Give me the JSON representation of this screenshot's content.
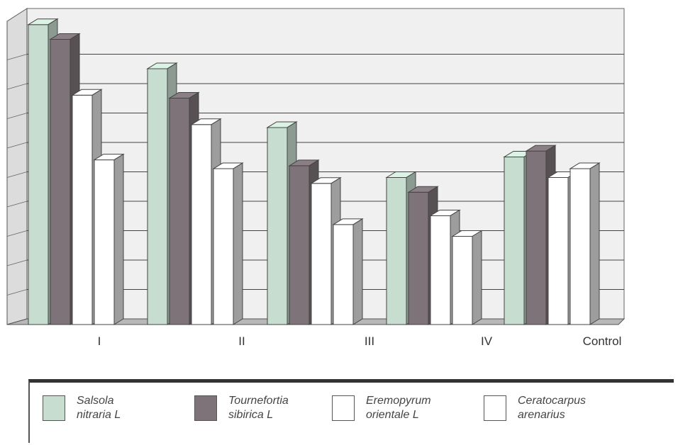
{
  "chart_data": {
    "type": "bar",
    "categories": [
      "I",
      "II",
      "III",
      "IV",
      "Control"
    ],
    "series": [
      {
        "name": "Salsola nitraria L",
        "values": [
          102,
          87,
          67,
          50,
          57
        ],
        "color": "#c7ddd0"
      },
      {
        "name": "Tournefortia sibirica L",
        "values": [
          97,
          77,
          54,
          45,
          59
        ],
        "color": "#7d7378"
      },
      {
        "name": "Eremopyrum orientale L",
        "values": [
          78,
          68,
          48,
          37,
          50
        ],
        "color": "#ffffff"
      },
      {
        "name": "Ceratocarpus arenarius",
        "values": [
          56,
          53,
          34,
          30,
          53
        ],
        "color": "#ffffff"
      }
    ],
    "yticks": [
      0,
      10,
      20,
      30,
      40,
      50,
      60,
      70,
      80,
      90
    ],
    "ylim": [
      0,
      100
    ],
    "grid": true,
    "legend_position": "bottom"
  },
  "legend": {
    "labels": [
      "Salsola\nnitraria L",
      "Tournefortia\nsibirica L",
      "Eremopyrum\norientale L",
      "Ceratocarpus\narenarius"
    ]
  }
}
